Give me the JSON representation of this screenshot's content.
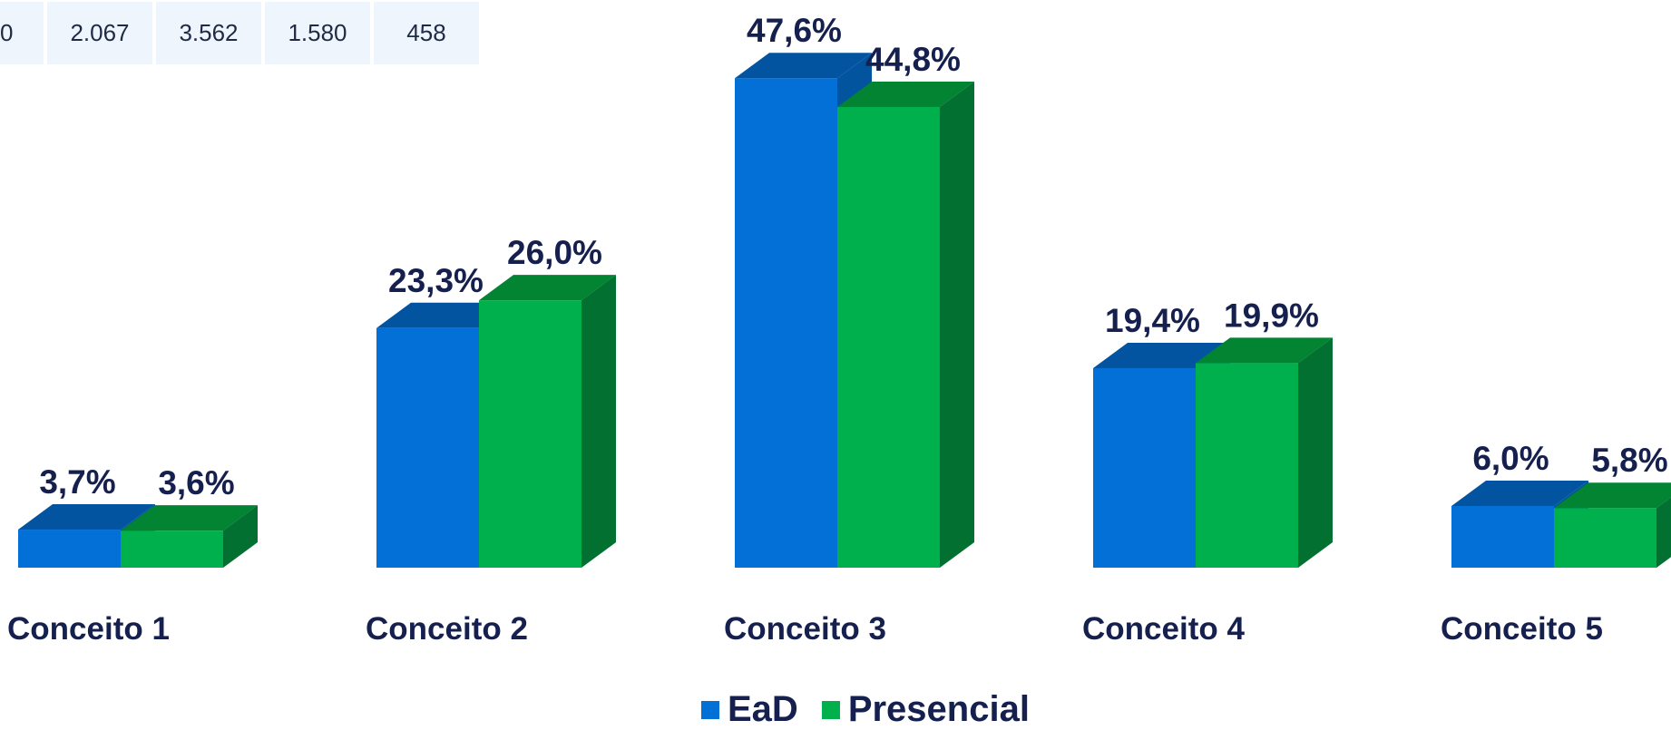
{
  "table": {
    "cells": [
      "0",
      "2.067",
      "3.562",
      "1.580",
      "458"
    ]
  },
  "colors": {
    "ead": "#0270d6",
    "ead_top": "#0354a0",
    "ead_side": "#02549f",
    "presencial": "#00b04c",
    "presencial_top": "#028432",
    "presencial_side": "#017030",
    "label_text": "#16204f"
  },
  "chart_data": {
    "type": "bar",
    "categories": [
      "Conceito 1",
      "Conceito 2",
      "Conceito 3",
      "Conceito 4",
      "Conceito 5"
    ],
    "series": [
      {
        "name": "EaD",
        "values": [
          3.7,
          23.3,
          47.6,
          19.4,
          6.0
        ],
        "labels": [
          "3,7%",
          "23,3%",
          "47,6%",
          "19,4%",
          "6,0%"
        ]
      },
      {
        "name": "Presencial",
        "values": [
          3.6,
          26.0,
          44.8,
          19.9,
          5.8
        ],
        "labels": [
          "3,6%",
          "26,0%",
          "44,8%",
          "19,9%",
          "5,8%"
        ]
      }
    ],
    "title": "",
    "xlabel": "",
    "ylabel": "",
    "ylim": [
      0,
      50
    ],
    "grid": false,
    "legend_position": "bottom-center",
    "style": "3d-clustered-column"
  }
}
